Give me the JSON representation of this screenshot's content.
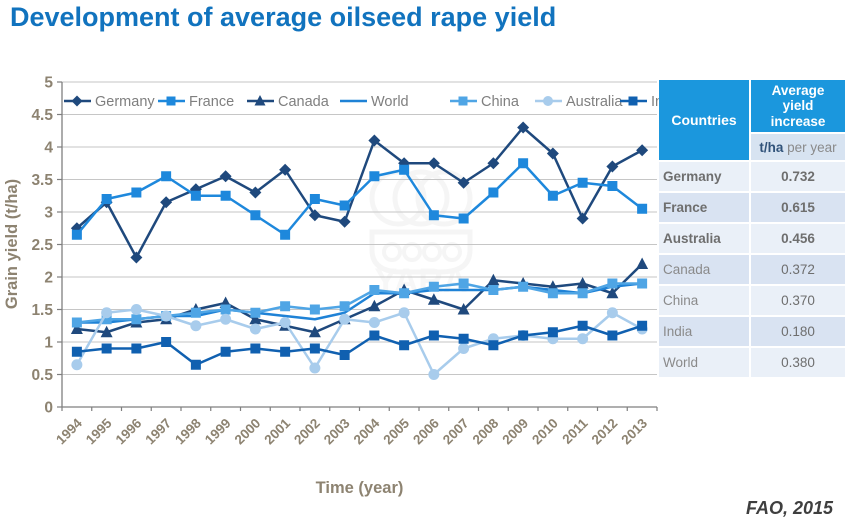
{
  "page": {
    "title": "Development of average oilseed rape yield",
    "credit": "FAO, 2015"
  },
  "colors": {
    "title_blue": "#1173BE",
    "axis_text": "#8D8371",
    "grid_line": "#C6C6C6",
    "axis_line": "#7F7F7F",
    "legend_text": "#7F7F7F",
    "table_header_bg": "#1B97DD",
    "subheader_bg": "#D7E3F1",
    "subheader_bold_text": "#31537A",
    "table_row_light": "#EAF0F8",
    "table_row_dark": "#D9E3F2",
    "table_text": "#6E6E6E",
    "table_text_light": "#8A8A8A",
    "credit_text": "#3F3F3F",
    "watermark": "#8C8C8C"
  },
  "chart_data": {
    "type": "line",
    "title": "",
    "xlabel": "Time (year)",
    "ylabel": "Grain yield (t/ha)",
    "ylim": [
      0,
      5
    ],
    "ytick_step": 0.5,
    "grid": "horizontal",
    "legend_position": "top",
    "x": [
      1994,
      1995,
      1996,
      1997,
      1998,
      1999,
      2000,
      2001,
      2002,
      2003,
      2004,
      2005,
      2006,
      2007,
      2008,
      2009,
      2010,
      2011,
      2012,
      2013
    ],
    "series": [
      {
        "name": "Germany",
        "marker": "diamond",
        "color": "#1F497D",
        "values": [
          2.75,
          3.15,
          2.3,
          3.15,
          3.35,
          3.55,
          3.3,
          3.65,
          2.95,
          2.85,
          4.1,
          3.75,
          3.75,
          3.45,
          3.75,
          4.3,
          3.9,
          2.9,
          3.7,
          3.95
        ]
      },
      {
        "name": "France",
        "marker": "square",
        "color": "#1E88DC",
        "values": [
          2.65,
          3.2,
          3.3,
          3.55,
          3.25,
          3.25,
          2.95,
          2.65,
          3.2,
          3.1,
          3.55,
          3.65,
          2.95,
          2.9,
          3.3,
          3.75,
          3.25,
          3.45,
          3.4,
          3.05
        ]
      },
      {
        "name": "Canada",
        "marker": "triangle",
        "color": "#1F497D",
        "values": [
          1.2,
          1.15,
          1.3,
          1.35,
          1.5,
          1.6,
          1.35,
          1.25,
          1.15,
          1.35,
          1.55,
          1.8,
          1.65,
          1.5,
          1.95,
          1.9,
          1.85,
          1.9,
          1.75,
          2.2
        ]
      },
      {
        "name": "World",
        "marker": "none",
        "color": "#1F82D6",
        "values": [
          1.3,
          1.3,
          1.35,
          1.4,
          1.4,
          1.5,
          1.45,
          1.4,
          1.35,
          1.45,
          1.75,
          1.75,
          1.8,
          1.8,
          1.8,
          1.85,
          1.8,
          1.75,
          1.85,
          1.9
        ]
      },
      {
        "name": "China",
        "marker": "square",
        "color": "#4FA5E5",
        "values": [
          1.3,
          1.35,
          1.35,
          1.4,
          1.45,
          1.5,
          1.45,
          1.55,
          1.5,
          1.55,
          1.8,
          1.75,
          1.85,
          1.9,
          1.8,
          1.85,
          1.75,
          1.75,
          1.9,
          1.9
        ]
      },
      {
        "name": "Australia",
        "marker": "circle",
        "color": "#A8CCEC",
        "values": [
          0.65,
          1.45,
          1.5,
          1.4,
          1.25,
          1.35,
          1.2,
          1.3,
          0.6,
          1.35,
          1.3,
          1.45,
          0.5,
          0.9,
          1.05,
          1.1,
          1.05,
          1.05,
          1.45,
          1.2
        ]
      },
      {
        "name": "India",
        "marker": "square",
        "color": "#1060B0",
        "values": [
          0.85,
          0.9,
          0.9,
          1.0,
          0.65,
          0.85,
          0.9,
          0.85,
          0.9,
          0.8,
          1.1,
          0.95,
          1.1,
          1.05,
          0.95,
          1.1,
          1.15,
          1.25,
          1.1,
          1.25
        ]
      }
    ]
  },
  "table": {
    "col1_header": "Countries",
    "col2_header": "Average yield increase",
    "col2_subheader_bold": "t/ha",
    "col2_subheader_rest": " per year",
    "rows": [
      {
        "country": "Germany",
        "value": "0.732",
        "bold": true
      },
      {
        "country": "France",
        "value": "0.615",
        "bold": true
      },
      {
        "country": "Australia",
        "value": "0.456",
        "bold": true
      },
      {
        "country": "Canada",
        "value": "0.372",
        "bold": false
      },
      {
        "country": "China",
        "value": "0.370",
        "bold": false
      },
      {
        "country": "India",
        "value": "0.180",
        "bold": false
      },
      {
        "country": "World",
        "value": "0.380",
        "bold": false
      }
    ]
  },
  "watermark": "YARA"
}
